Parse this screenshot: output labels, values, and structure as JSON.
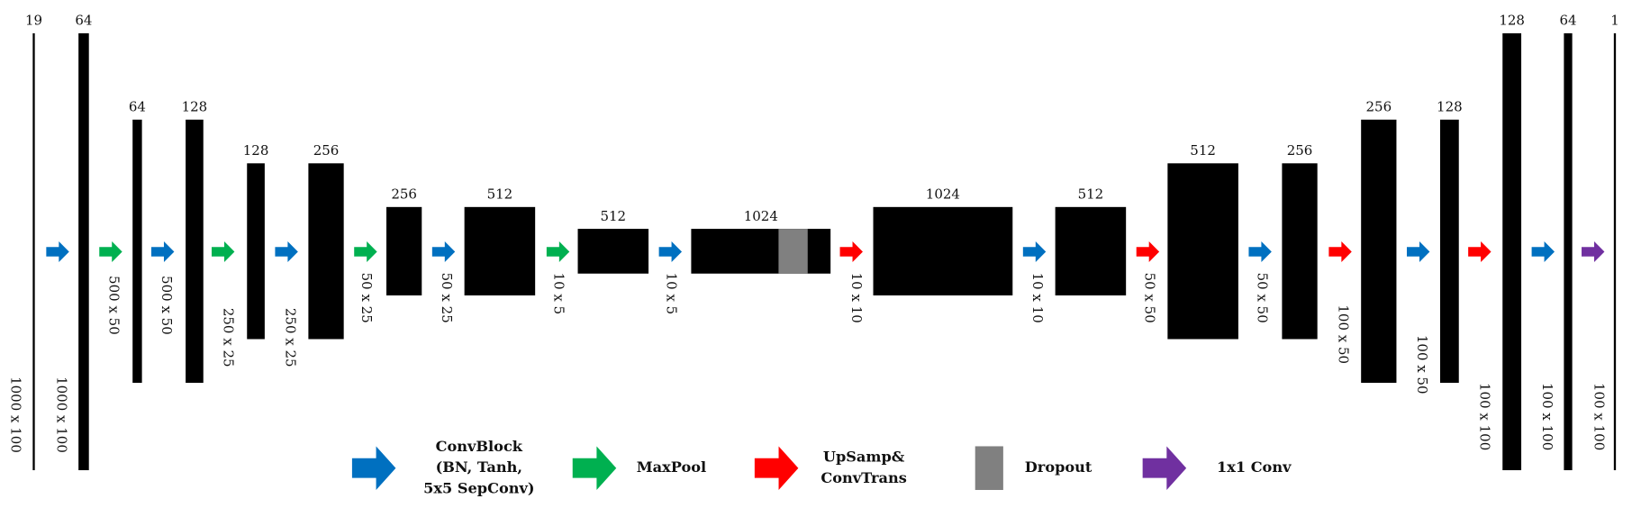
{
  "blocks": [
    {
      "channels": 19,
      "size": "1000 x 100"
    },
    {
      "channels": 64,
      "size": "1000 x 100"
    },
    {
      "channels": 64,
      "size": "500 x 50"
    },
    {
      "channels": 128,
      "size": "500 x 50"
    },
    {
      "channels": 128,
      "size": "250 x 25"
    },
    {
      "channels": 256,
      "size": "250 x 25"
    },
    {
      "channels": 256,
      "size": "50 x 25"
    },
    {
      "channels": 512,
      "size": "50 x 25"
    },
    {
      "channels": 512,
      "size": "10 x 5"
    },
    {
      "channels": 1024,
      "size": "10 x 5"
    },
    {
      "channels": 1024,
      "size": "10 x 10"
    },
    {
      "channels": 512,
      "size": "10 x 10"
    },
    {
      "channels": 512,
      "size": "50 x 50"
    },
    {
      "channels": 256,
      "size": "50 x 50"
    },
    {
      "channels": 256,
      "size": "100 x 50"
    },
    {
      "channels": 128,
      "size": "100 x 50"
    },
    {
      "channels": 128,
      "size": "100 x 100"
    },
    {
      "channels": 64,
      "size": "100 x 100"
    },
    {
      "channels": 1,
      "size": "100 x 100"
    }
  ],
  "legend": [
    {
      "lines": [
        "ConvBlock",
        "(BN, Tanh,",
        "5x5 SepConv)"
      ]
    },
    {
      "lines": [
        "MaxPool"
      ]
    },
    {
      "lines": [
        "UpSamp&",
        "ConvTrans"
      ]
    },
    {
      "lines": [
        "Dropout"
      ]
    },
    {
      "lines": [
        "1x1 Conv"
      ]
    }
  ]
}
